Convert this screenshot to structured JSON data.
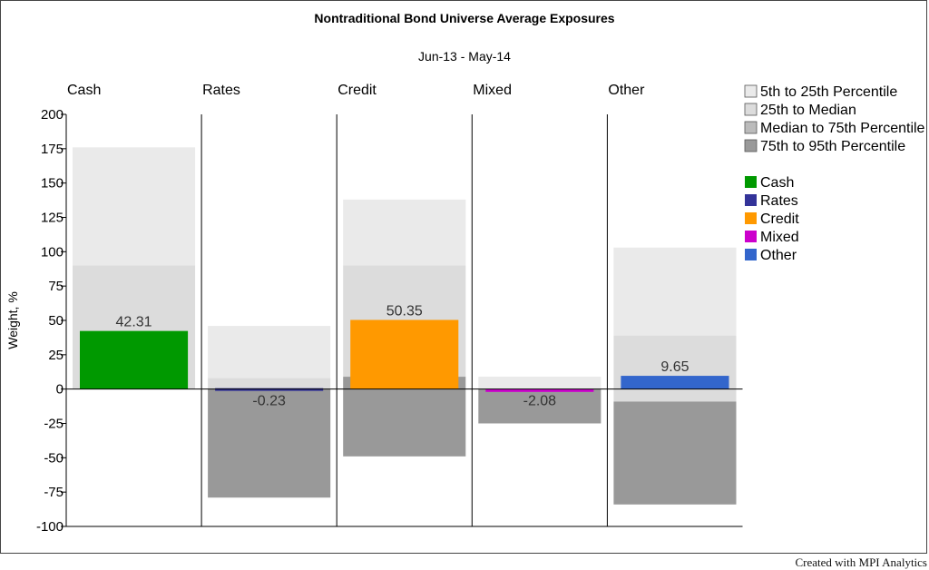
{
  "chart_data": {
    "type": "bar",
    "title": "Nontraditional Bond Universe Average Exposures",
    "subtitle": "Jun-13 - May-14",
    "ylabel": "Weight, %",
    "ylim": [
      -100,
      200
    ],
    "yticks": [
      200,
      175,
      150,
      125,
      100,
      75,
      50,
      25,
      0,
      -25,
      -50,
      -75,
      -100
    ],
    "categories": [
      "Cash",
      "Rates",
      "Credit",
      "Mixed",
      "Other"
    ],
    "values": [
      42.31,
      -0.23,
      50.35,
      -2.08,
      9.65
    ],
    "value_labels": [
      "42.31",
      "-0.23",
      "50.35",
      "-2.08",
      "9.65"
    ],
    "bar_colors": [
      "#009900",
      "#333399",
      "#ff9900",
      "#cc00cc",
      "#3366cc"
    ],
    "percentile_bands": [
      {
        "category": "Cash",
        "p5": 0,
        "p25": 0,
        "p50": 0,
        "p75": 90,
        "p95": 176
      },
      {
        "category": "Rates",
        "p5": -79,
        "p25": 0,
        "p50": 0,
        "p75": 8,
        "p95": 46
      },
      {
        "category": "Credit",
        "p5": -49,
        "p25": 9,
        "p50": 9,
        "p75": 90,
        "p95": 138
      },
      {
        "category": "Mixed",
        "p5": -25,
        "p25": 0,
        "p50": 0,
        "p75": 0,
        "p95": 9
      },
      {
        "category": "Other",
        "p5": -84,
        "p25": -9,
        "p50": -9,
        "p75": 39,
        "p95": 103
      }
    ],
    "band_colors": {
      "p5_p25": "#999999",
      "p25_p50": "#bbbbbb",
      "p50_p75": "#dcdcdc",
      "p75_p95": "#eaeaea"
    },
    "legend_position": "right",
    "legend": {
      "bands": [
        {
          "label": "5th to 25th Percentile",
          "color": "#eaeaea"
        },
        {
          "label": "25th to Median",
          "color": "#dcdcdc"
        },
        {
          "label": "Median to 75th Percentile",
          "color": "#bbbbbb"
        },
        {
          "label": "75th to 95th Percentile",
          "color": "#999999"
        }
      ],
      "series": [
        {
          "label": "Cash",
          "color": "#009900"
        },
        {
          "label": "Rates",
          "color": "#333399"
        },
        {
          "label": "Credit",
          "color": "#ff9900"
        },
        {
          "label": "Mixed",
          "color": "#cc00cc"
        },
        {
          "label": "Other",
          "color": "#3366cc"
        }
      ]
    }
  },
  "footer": {
    "credit": "Created with MPI Analytics"
  }
}
